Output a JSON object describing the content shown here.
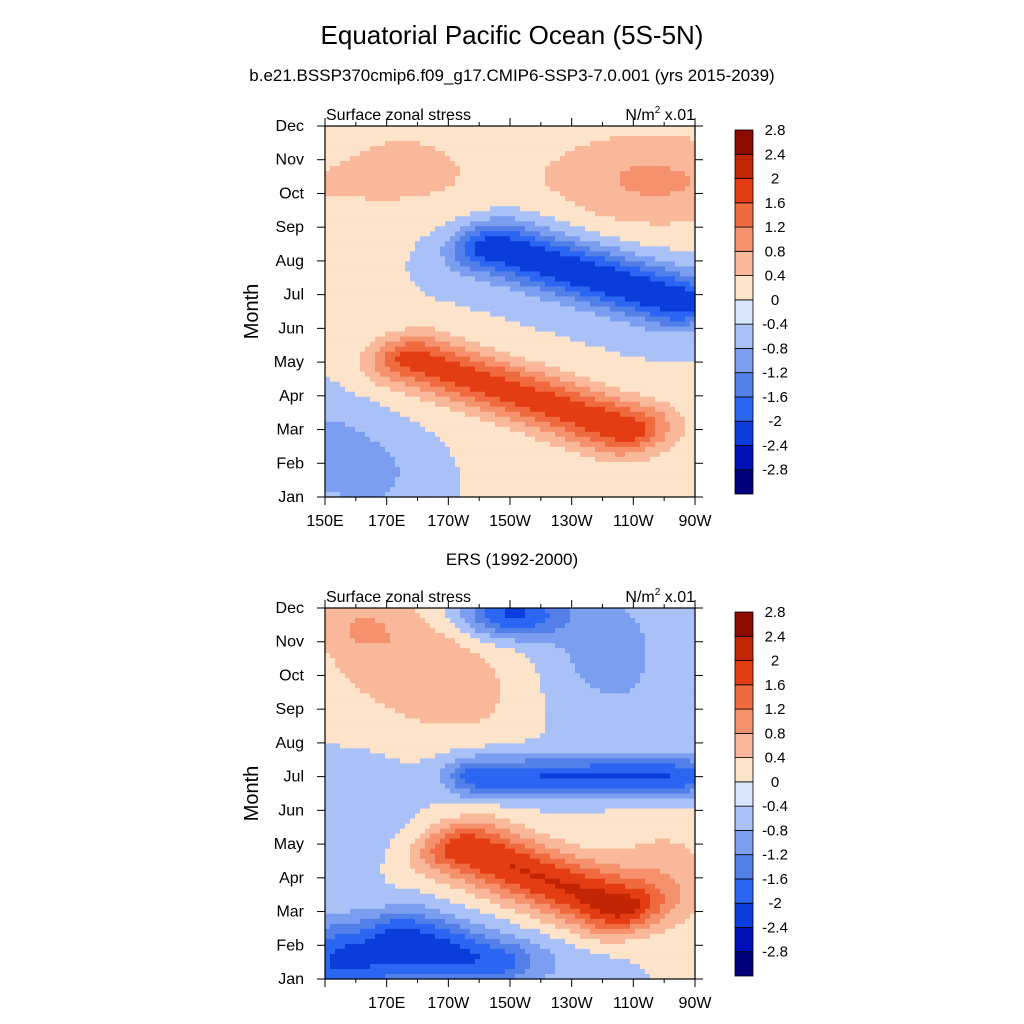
{
  "header": {
    "title": "Equatorial Pacific Ocean (5S-5N)",
    "subtitle": "b.e21.BSSP370cmip6.f09_g17.CMIP6-SSP3-7.0.001 (yrs 2015-2039)"
  },
  "chart_data": [
    {
      "type": "heatmap",
      "title": "",
      "left_label": "Surface zonal stress",
      "right_label_base": "N/m",
      "right_label_sup": "2",
      "right_label_suffix": " x.01",
      "xlabel": "",
      "ylabel": "Month",
      "x_ticks": [
        "150E",
        "170E",
        "170W",
        "150W",
        "130W",
        "110W",
        "90W"
      ],
      "x_values": [
        150,
        170,
        190,
        210,
        230,
        250,
        270
      ],
      "xlim": [
        150,
        270
      ],
      "y_ticks": [
        "Jan",
        "Feb",
        "Mar",
        "Apr",
        "May",
        "Jun",
        "Jul",
        "Aug",
        "Sep",
        "Oct",
        "Nov",
        "Dec"
      ],
      "ylim": [
        1,
        12
      ],
      "colorbar": {
        "labels": [
          "-2.8",
          "-2.4",
          "-2",
          "-1.6",
          "-1.2",
          "-0.8",
          "-0.4",
          "0",
          "0.4",
          "0.8",
          "1.2",
          "1.6",
          "2",
          "2.4",
          "2.8"
        ],
        "levels": [
          -2.8,
          -2.4,
          -2.0,
          -1.6,
          -1.2,
          -0.8,
          -0.4,
          0,
          0.4,
          0.8,
          1.2,
          1.6,
          2.0,
          2.4,
          2.8
        ],
        "colors": [
          "#00007a",
          "#0010b8",
          "#0a3ddb",
          "#2a66f2",
          "#527fe8",
          "#7b9ef0",
          "#a9c1f6",
          "#d7e6fb",
          "#fde3ca",
          "#f9b899",
          "#f5926d",
          "#f06a3f",
          "#e43c13",
          "#c12504",
          "#8d0c00"
        ]
      },
      "features": [
        {
          "x": 150,
          "y": 2.4,
          "v": -0.6,
          "sx": 12,
          "sy": 0.9
        },
        {
          "x": 165,
          "y": 1.6,
          "v": -0.5,
          "sx": 10,
          "sy": 0.7
        },
        {
          "x": 260,
          "y": 2.5,
          "v": 0.15,
          "sx": 30,
          "sy": 1.0
        },
        {
          "x": 150,
          "y": 7.1,
          "v": 0.2,
          "sx": 12,
          "sy": 0.8
        },
        {
          "x": 175,
          "y": 11.2,
          "v": 0.3,
          "sx": 14,
          "sy": 0.7
        },
        {
          "x": 255,
          "y": 10.6,
          "v": 0.5,
          "sx": 22,
          "sy": 1.2
        },
        {
          "x": 215,
          "y": 9.8,
          "v": -0.2,
          "sx": 18,
          "sy": 0.8
        }
      ],
      "bands": [
        {
          "x0": 178,
          "y0": 5.1,
          "x1": 248,
          "y1": 3.0,
          "v": 1.8,
          "sw": 16,
          "sn": 0.55
        },
        {
          "x0": 205,
          "y0": 8.4,
          "x1": 265,
          "y1": 6.8,
          "v": -2.0,
          "sw": 18,
          "sn": 0.55
        },
        {
          "x0": 150,
          "y0": 10.2,
          "x1": 270,
          "y1": 10.2,
          "v": 0.4,
          "sw": 20,
          "sn": 0.9
        }
      ]
    },
    {
      "type": "heatmap",
      "title": "ERS (1992-2000)",
      "left_label": "Surface zonal stress",
      "right_label_base": "N/m",
      "right_label_sup": "2",
      "right_label_suffix": " x.01",
      "xlabel": "",
      "ylabel": "Month",
      "x_ticks": [
        "170E",
        "170W",
        "150W",
        "130W",
        "110W",
        "90W"
      ],
      "x_values": [
        170,
        190,
        210,
        230,
        250,
        270
      ],
      "xlim": [
        150,
        270
      ],
      "y_ticks": [
        "Jan",
        "Feb",
        "Mar",
        "Apr",
        "May",
        "Jun",
        "Jul",
        "Aug",
        "Sep",
        "Oct",
        "Nov",
        "Dec"
      ],
      "ylim": [
        1,
        12
      ],
      "colorbar": {
        "labels": [
          "-2.8",
          "-2.4",
          "-2",
          "-1.6",
          "-1.2",
          "-0.8",
          "-0.4",
          "0",
          "0.4",
          "0.8",
          "1.2",
          "1.6",
          "2",
          "2.4",
          "2.8"
        ],
        "levels": [
          -2.8,
          -2.4,
          -2.0,
          -1.6,
          -1.2,
          -0.8,
          -0.4,
          0,
          0.4,
          0.8,
          1.2,
          1.6,
          2.0,
          2.4,
          2.8
        ],
        "colors": [
          "#00007a",
          "#0010b8",
          "#0a3ddb",
          "#2a66f2",
          "#527fe8",
          "#7b9ef0",
          "#a9c1f6",
          "#d7e6fb",
          "#fde3ca",
          "#f9b899",
          "#f5926d",
          "#f06a3f",
          "#e43c13",
          "#c12504",
          "#8d0c00"
        ]
      },
      "features": [
        {
          "x": 170,
          "y": 1.6,
          "v": -1.4,
          "sx": 18,
          "sy": 0.7
        },
        {
          "x": 150,
          "y": 1.5,
          "v": -0.8,
          "sx": 10,
          "sy": 1.0
        },
        {
          "x": 215,
          "y": 1.4,
          "v": -0.4,
          "sx": 18,
          "sy": 0.6
        },
        {
          "x": 160,
          "y": 6.0,
          "v": -0.2,
          "sx": 12,
          "sy": 1.2
        },
        {
          "x": 210,
          "y": 11.8,
          "v": -1.8,
          "sx": 12,
          "sy": 0.5
        },
        {
          "x": 240,
          "y": 11.0,
          "v": -0.6,
          "sx": 14,
          "sy": 1.2
        },
        {
          "x": 180,
          "y": 10.5,
          "v": 0.7,
          "sx": 22,
          "sy": 1.3
        },
        {
          "x": 160,
          "y": 11.5,
          "v": 0.5,
          "sx": 10,
          "sy": 0.6
        },
        {
          "x": 255,
          "y": 9.0,
          "v": -0.2,
          "sx": 20,
          "sy": 1.0
        },
        {
          "x": 260,
          "y": 4.0,
          "v": 0.6,
          "sx": 14,
          "sy": 1.2
        },
        {
          "x": 195,
          "y": 9.1,
          "v": 0.3,
          "sx": 14,
          "sy": 0.7
        }
      ],
      "bands": [
        {
          "x0": 195,
          "y0": 4.9,
          "x1": 245,
          "y1": 3.1,
          "v": 2.0,
          "sw": 14,
          "sn": 0.6
        },
        {
          "x0": 200,
          "y0": 7.0,
          "x1": 265,
          "y1": 7.0,
          "v": -1.6,
          "sw": 24,
          "sn": 0.4
        },
        {
          "x0": 175,
          "y0": 2.5,
          "x1": 205,
          "y1": 1.5,
          "v": -1.0,
          "sw": 14,
          "sn": 0.5
        }
      ]
    }
  ]
}
